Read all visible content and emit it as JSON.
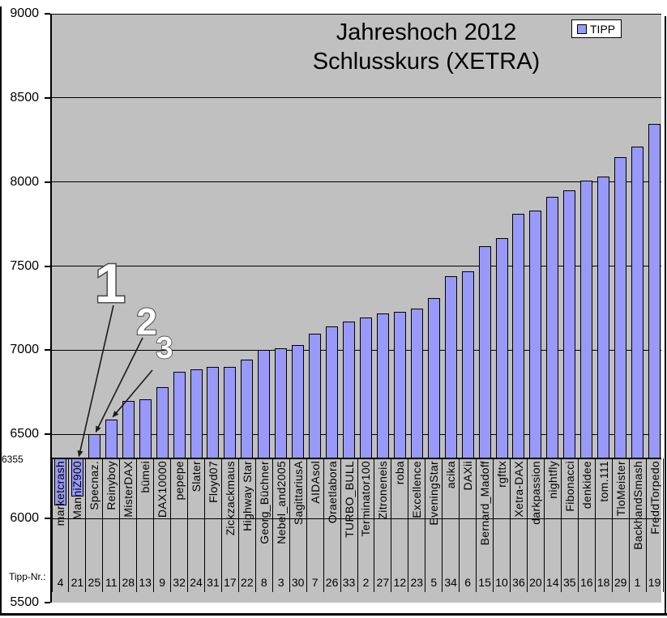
{
  "title": {
    "line1": "Jahreshoch 2012",
    "line2": "Schlusskurs (XETRA)"
  },
  "legend": {
    "label": "TIPP"
  },
  "axis": {
    "y_ticks": [
      9000,
      8500,
      8000,
      7500,
      7000,
      6500,
      6000,
      5500
    ],
    "baseline_value": 6355,
    "baseline_label": "6355"
  },
  "tipp_nr_caption": "Tipp-Nr.:",
  "annotations": [
    {
      "label": "1",
      "bar_index": 2,
      "font_size": 68,
      "number_pos": [
        136,
        373
      ],
      "from": [
        140,
        377
      ]
    },
    {
      "label": "2",
      "bar_index": 3,
      "font_size": 46,
      "number_pos": [
        181,
        413
      ],
      "from": [
        176,
        417
      ]
    },
    {
      "label": "3",
      "bar_index": 4,
      "font_size": 38,
      "number_pos": [
        203,
        442
      ],
      "from": [
        188,
        457
      ]
    }
  ],
  "colors": {
    "plot_bg": "#c0c0c0",
    "bar_fill": "#9999fa",
    "bar_border": "#000000",
    "annotation_fill": "#ffffff",
    "annotation_stroke": "#4d4d4d"
  },
  "chart_data": {
    "type": "bar",
    "title": "Jahreshoch 2012 Schlusskurs (XETRA)",
    "series_name": "TIPP",
    "ylim": [
      5500,
      9000
    ],
    "baseline": 6355,
    "grid": true,
    "legend_position": "top-right",
    "categories": [
      "marketcrash",
      "ManniZ900",
      "Specnaz.",
      "Reinyboy",
      "MisterDAX",
      "bümei",
      "DAX10000",
      "pepepe",
      "Slater",
      "Floyd07",
      "Zickzackmaus",
      "Highway Star",
      "Georg_Büchner",
      "Nebel_and2005",
      "SagittariusA",
      "AIDAsol",
      "Oraetlabora",
      "TURBO_BULL",
      "Terminator100",
      "Zitroneneis",
      "roba",
      "Excellence",
      "EveningStar",
      "acika",
      "DAXii",
      "Bernard_Madoff",
      "rgfttx",
      "Xetra-DAX",
      "darkpassion",
      "nightfly",
      "Fibonacci",
      "denkidee",
      "tom.111",
      "TloMeister",
      "BackhandSmash",
      "FreddTorpedo"
    ],
    "tipp_nr": [
      4,
      21,
      25,
      11,
      28,
      13,
      9,
      32,
      24,
      31,
      17,
      22,
      8,
      3,
      30,
      7,
      26,
      33,
      2,
      27,
      12,
      23,
      5,
      34,
      6,
      15,
      10,
      36,
      20,
      14,
      35,
      16,
      18,
      29,
      1,
      19
    ],
    "values": [
      6080,
      6130,
      6500,
      6590,
      6700,
      6710,
      6780,
      6870,
      6885,
      6900,
      6900,
      6945,
      7000,
      7010,
      7030,
      7100,
      7140,
      7170,
      7195,
      7220,
      7230,
      7250,
      7310,
      7440,
      7470,
      7620,
      7665,
      7810,
      7830,
      7910,
      7950,
      8010,
      8030,
      8150,
      8210,
      8345
    ]
  }
}
